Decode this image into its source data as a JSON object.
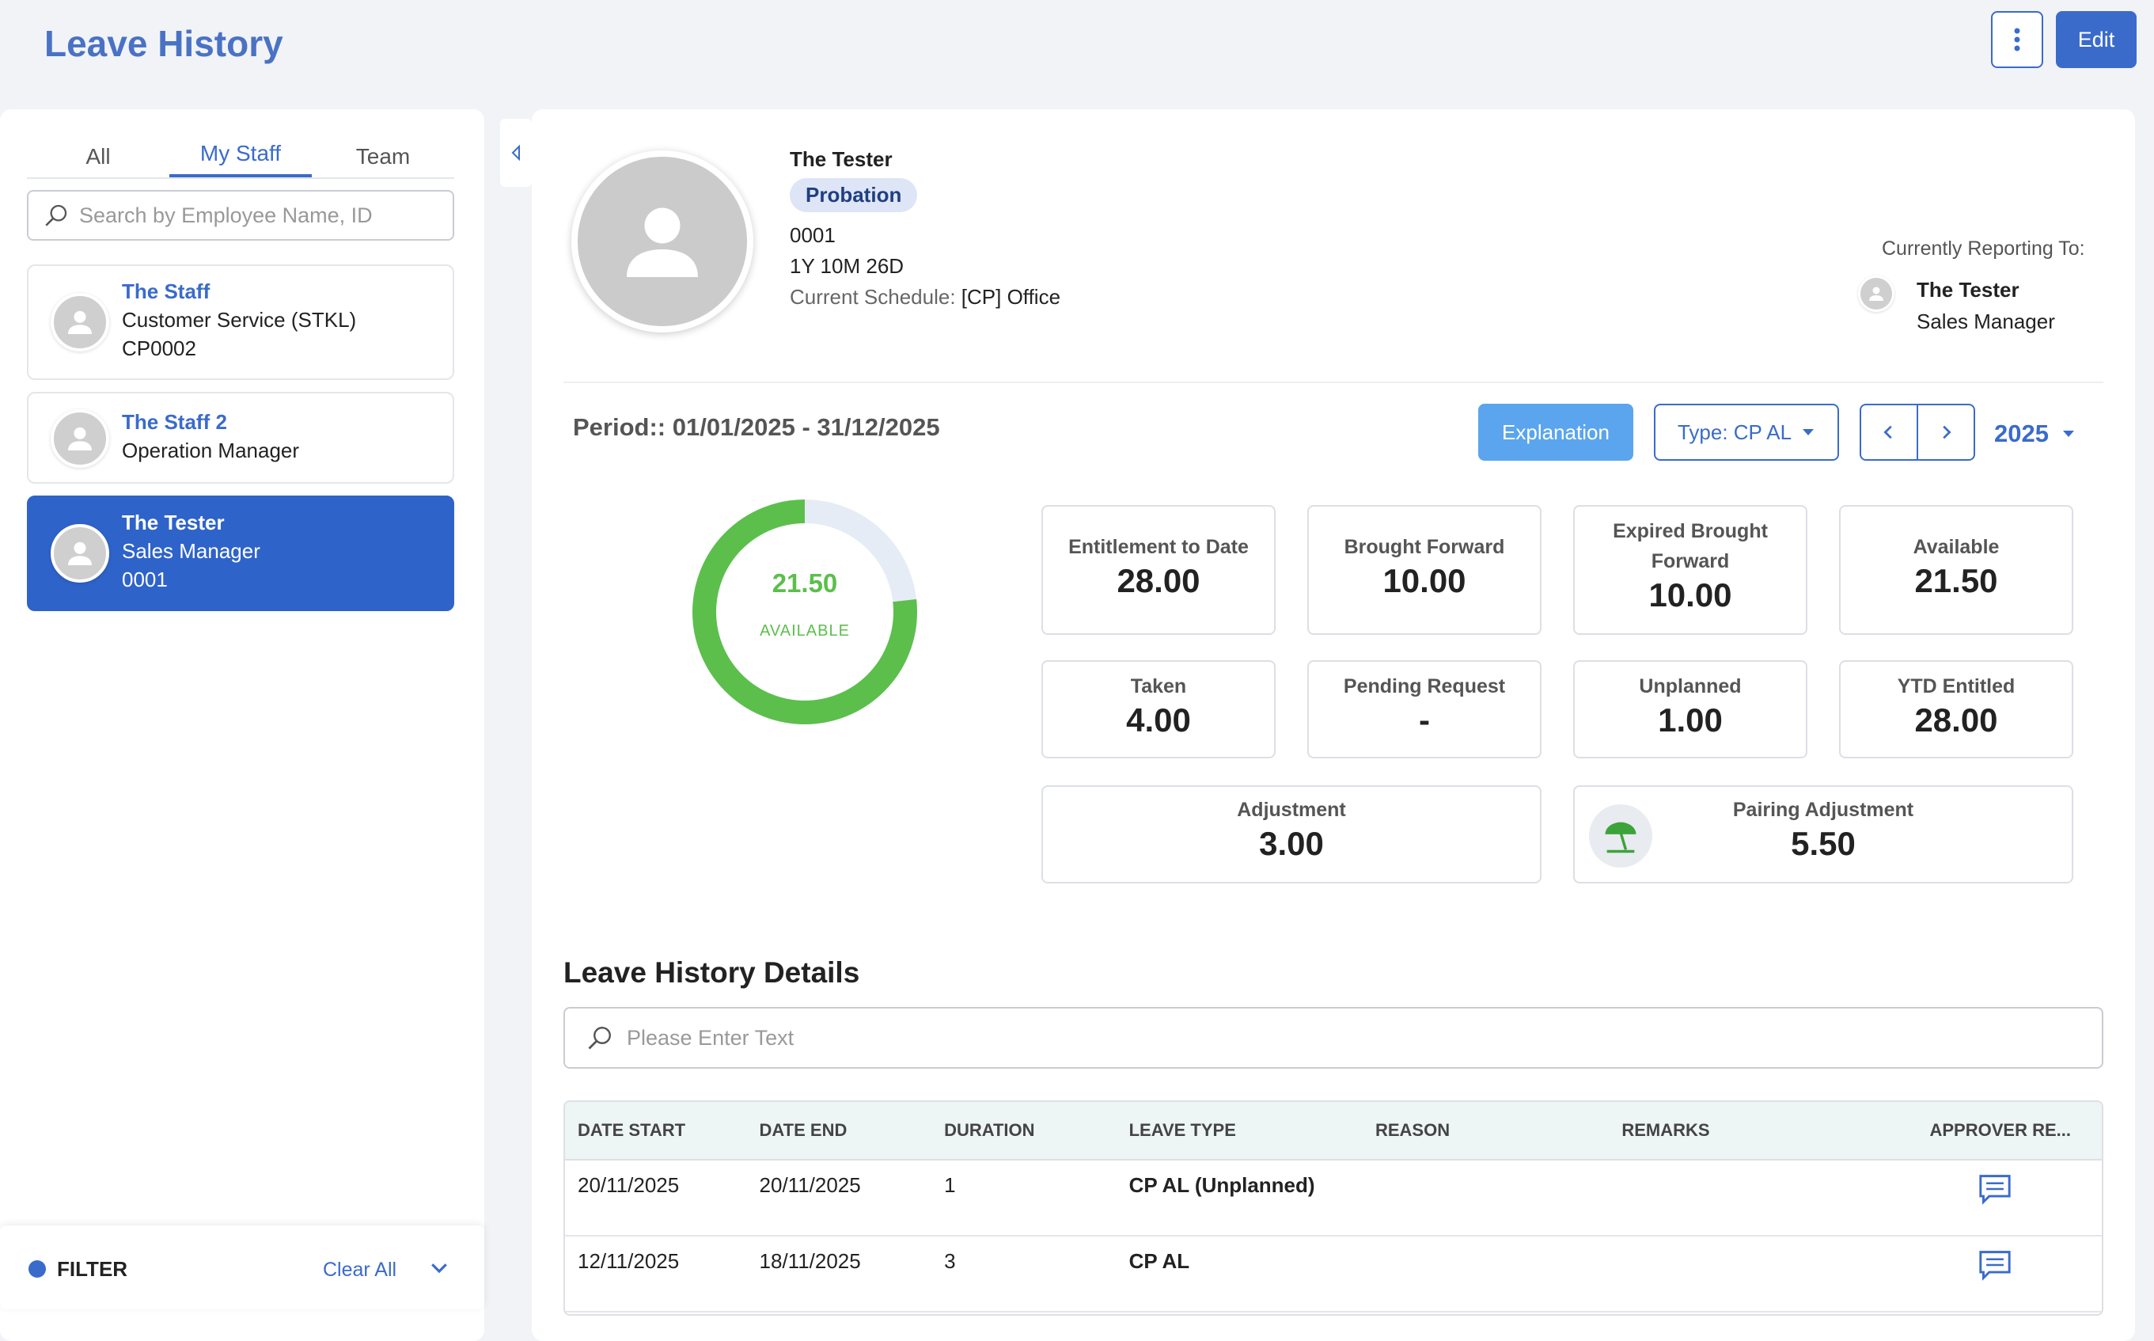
{
  "header": {
    "title": "Leave History",
    "edit_label": "Edit"
  },
  "left": {
    "tabs": [
      {
        "label": "All"
      },
      {
        "label": "My Staff"
      },
      {
        "label": "Team"
      }
    ],
    "search_placeholder": "Search by Employee Name, ID",
    "staff": [
      {
        "name": "The Staff",
        "role": "Customer Service (STKL)",
        "id": "CP0002"
      },
      {
        "name": "The Staff 2",
        "role": "Operation Manager",
        "id": ""
      },
      {
        "name": "The Tester",
        "role": "Sales Manager",
        "id": "0001"
      }
    ],
    "filter": {
      "label": "FILTER",
      "clear_label": "Clear All"
    }
  },
  "profile": {
    "name": "The Tester",
    "status": "Probation",
    "employee_id": "0001",
    "tenure": "1Y 10M 26D",
    "schedule_label": "Current Schedule:",
    "schedule_value": "[CP] Office",
    "reporting_label": "Currently Reporting To:",
    "reporting_name": "The Tester",
    "reporting_role": "Sales Manager"
  },
  "period": {
    "label": "Period:: 01/01/2025 - 31/12/2025",
    "explanation_label": "Explanation",
    "type_label": "Type: CP AL",
    "year": "2025"
  },
  "donut": {
    "value": "21.50",
    "label": "AVAILABLE",
    "available": 21.5,
    "total": 28.0
  },
  "stats": {
    "entitlement": {
      "label": "Entitlement to Date",
      "value": "28.00"
    },
    "brought_forward": {
      "label": "Brought Forward",
      "value": "10.00"
    },
    "expired_bf": {
      "label": "Expired Brought Forward",
      "value": "10.00"
    },
    "available": {
      "label": "Available",
      "value": "21.50"
    },
    "taken": {
      "label": "Taken",
      "value": "4.00"
    },
    "pending": {
      "label": "Pending Request",
      "value": "-"
    },
    "unplanned": {
      "label": "Unplanned",
      "value": "1.00"
    },
    "ytd": {
      "label": "YTD Entitled",
      "value": "28.00"
    },
    "adjustment": {
      "label": "Adjustment",
      "value": "3.00"
    },
    "pairing": {
      "label": "Pairing Adjustment",
      "value": "5.50"
    }
  },
  "details": {
    "title": "Leave History Details",
    "search_placeholder": "Please Enter Text",
    "columns": [
      "DATE START",
      "DATE END",
      "DURATION",
      "LEAVE TYPE",
      "REASON",
      "REMARKS",
      "APPROVER RE..."
    ],
    "rows": [
      {
        "start": "20/11/2025",
        "end": "20/11/2025",
        "duration": "1",
        "type": "CP AL (Unplanned)",
        "reason": "",
        "remarks": ""
      },
      {
        "start": "12/11/2025",
        "end": "18/11/2025",
        "duration": "3",
        "type": "CP AL",
        "reason": "",
        "remarks": ""
      }
    ]
  },
  "colors": {
    "accent": "#3a6bcb",
    "green": "#5cbf4c",
    "explain": "#5aa5ee"
  }
}
